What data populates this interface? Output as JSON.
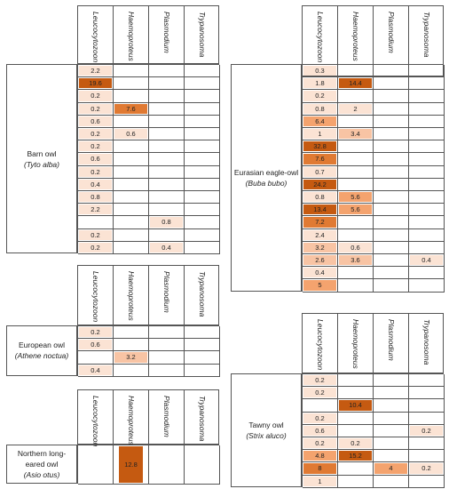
{
  "columns": [
    "Leucocytozoon",
    "Haemoproteus",
    "Plasmodium",
    "Trypanosoma"
  ],
  "colors": {
    "low": "#fbe3d4",
    "lowmid": "#f8c4a4",
    "mid": "#f4a36e",
    "high": "#e07a33",
    "top": "#c55a11",
    "border": "#555555"
  },
  "panels": [
    {
      "id": "barn-owl",
      "common": "Barn owl",
      "scientific": "(Tyto alba)",
      "rows": [
        [
          "2.2",
          "",
          "",
          ""
        ],
        [
          "19.6",
          "",
          "",
          ""
        ],
        [
          "0.2",
          "",
          "",
          ""
        ],
        [
          "0.2",
          "7.6",
          "",
          ""
        ],
        [
          "0.6",
          "",
          "",
          ""
        ],
        [
          "0.2",
          "0.6",
          "",
          ""
        ],
        [
          "0.2",
          "",
          "",
          ""
        ],
        [
          "0.6",
          "",
          "",
          ""
        ],
        [
          "0.2",
          "",
          "",
          ""
        ],
        [
          "0.4",
          "",
          "",
          ""
        ],
        [
          "0.8",
          "",
          "",
          ""
        ],
        [
          "2.2",
          "",
          "",
          ""
        ],
        [
          "",
          "",
          "0.8",
          ""
        ],
        [
          "0.2",
          "",
          "",
          ""
        ],
        [
          "0.2",
          "",
          "0.4",
          ""
        ]
      ]
    },
    {
      "id": "eurasian-eagle-owl",
      "common": "Eurasian eagle-owl",
      "scientific": "(Buba bubo)",
      "rows": [
        [
          "0.3",
          "",
          "",
          ""
        ],
        [
          "1.8",
          "14.4",
          "",
          ""
        ],
        [
          "0.2",
          "",
          "",
          ""
        ],
        [
          "0.8",
          "2",
          "",
          ""
        ],
        [
          "6.4",
          "",
          "",
          ""
        ],
        [
          "1",
          "3.4",
          "",
          ""
        ],
        [
          "32.8",
          "",
          "",
          ""
        ],
        [
          "7.6",
          "",
          "",
          ""
        ],
        [
          "0.7",
          "",
          "",
          ""
        ],
        [
          "24.2",
          "",
          "",
          ""
        ],
        [
          "0.8",
          "5.6",
          "",
          ""
        ],
        [
          "13.4",
          "5.6",
          "",
          ""
        ],
        [
          "7.2",
          "",
          "",
          ""
        ],
        [
          "2.4",
          "",
          "",
          ""
        ],
        [
          "3.2",
          "0.6",
          "",
          ""
        ],
        [
          "2.6",
          "3.6",
          "",
          "0.4"
        ],
        [
          "0.4",
          "",
          "",
          ""
        ],
        [
          "5",
          "",
          "",
          ""
        ]
      ]
    },
    {
      "id": "european-owl",
      "common": "European owl",
      "scientific": "(Athene noctua)",
      "rows": [
        [
          "0.2",
          "",
          "",
          ""
        ],
        [
          "0.6",
          "",
          "",
          ""
        ],
        [
          "",
          "3.2",
          "",
          ""
        ],
        [
          "0.4",
          "",
          "",
          ""
        ]
      ]
    },
    {
      "id": "northern-long-eared-owl",
      "common": "Northern long-eared owl",
      "scientific": "(Asio otus)",
      "rows": [
        [
          "",
          "12.8",
          "",
          ""
        ]
      ]
    },
    {
      "id": "tawny-owl",
      "common": "Tawny owl",
      "scientific": "(Strix aluco)",
      "rows": [
        [
          "0.2",
          "",
          "",
          ""
        ],
        [
          "0.2",
          "",
          "",
          ""
        ],
        [
          "",
          "10.4",
          "",
          ""
        ],
        [
          "0.2",
          "",
          "",
          ""
        ],
        [
          "0.6",
          "",
          "",
          "0.2"
        ],
        [
          "0.2",
          "0.2",
          "",
          ""
        ],
        [
          "4.8",
          "15.2",
          "",
          ""
        ],
        [
          "8",
          "",
          "4",
          "0.2"
        ],
        [
          "1",
          "",
          "",
          ""
        ]
      ]
    }
  ]
}
